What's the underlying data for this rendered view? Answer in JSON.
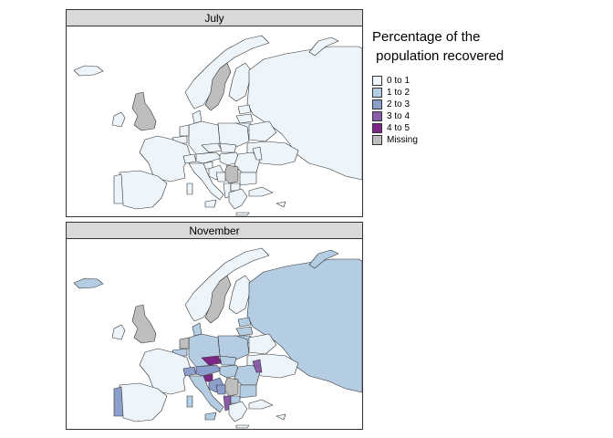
{
  "panels": [
    {
      "title": "July"
    },
    {
      "title": "November"
    }
  ],
  "legend": {
    "title_line1": "Percentage of the",
    "title_line2": " population recovered",
    "items": [
      {
        "label": "0 to 1",
        "color": "#edf5fa"
      },
      {
        "label": "1 to 2",
        "color": "#b5cde3"
      },
      {
        "label": "2 to 3",
        "color": "#8c9ecb"
      },
      {
        "label": "3 to 4",
        "color": "#8a5da8"
      },
      {
        "label": "4 to 5",
        "color": "#7f2787"
      },
      {
        "label": "Missing",
        "color": "#bebebe"
      }
    ]
  },
  "colors": {
    "missing": "#bebebe",
    "c0": "#edf5fa",
    "c1": "#b5cde3",
    "c2": "#8c9ecb",
    "c3": "#8a5da8",
    "c4": "#7f2787",
    "border": "#333333"
  }
}
